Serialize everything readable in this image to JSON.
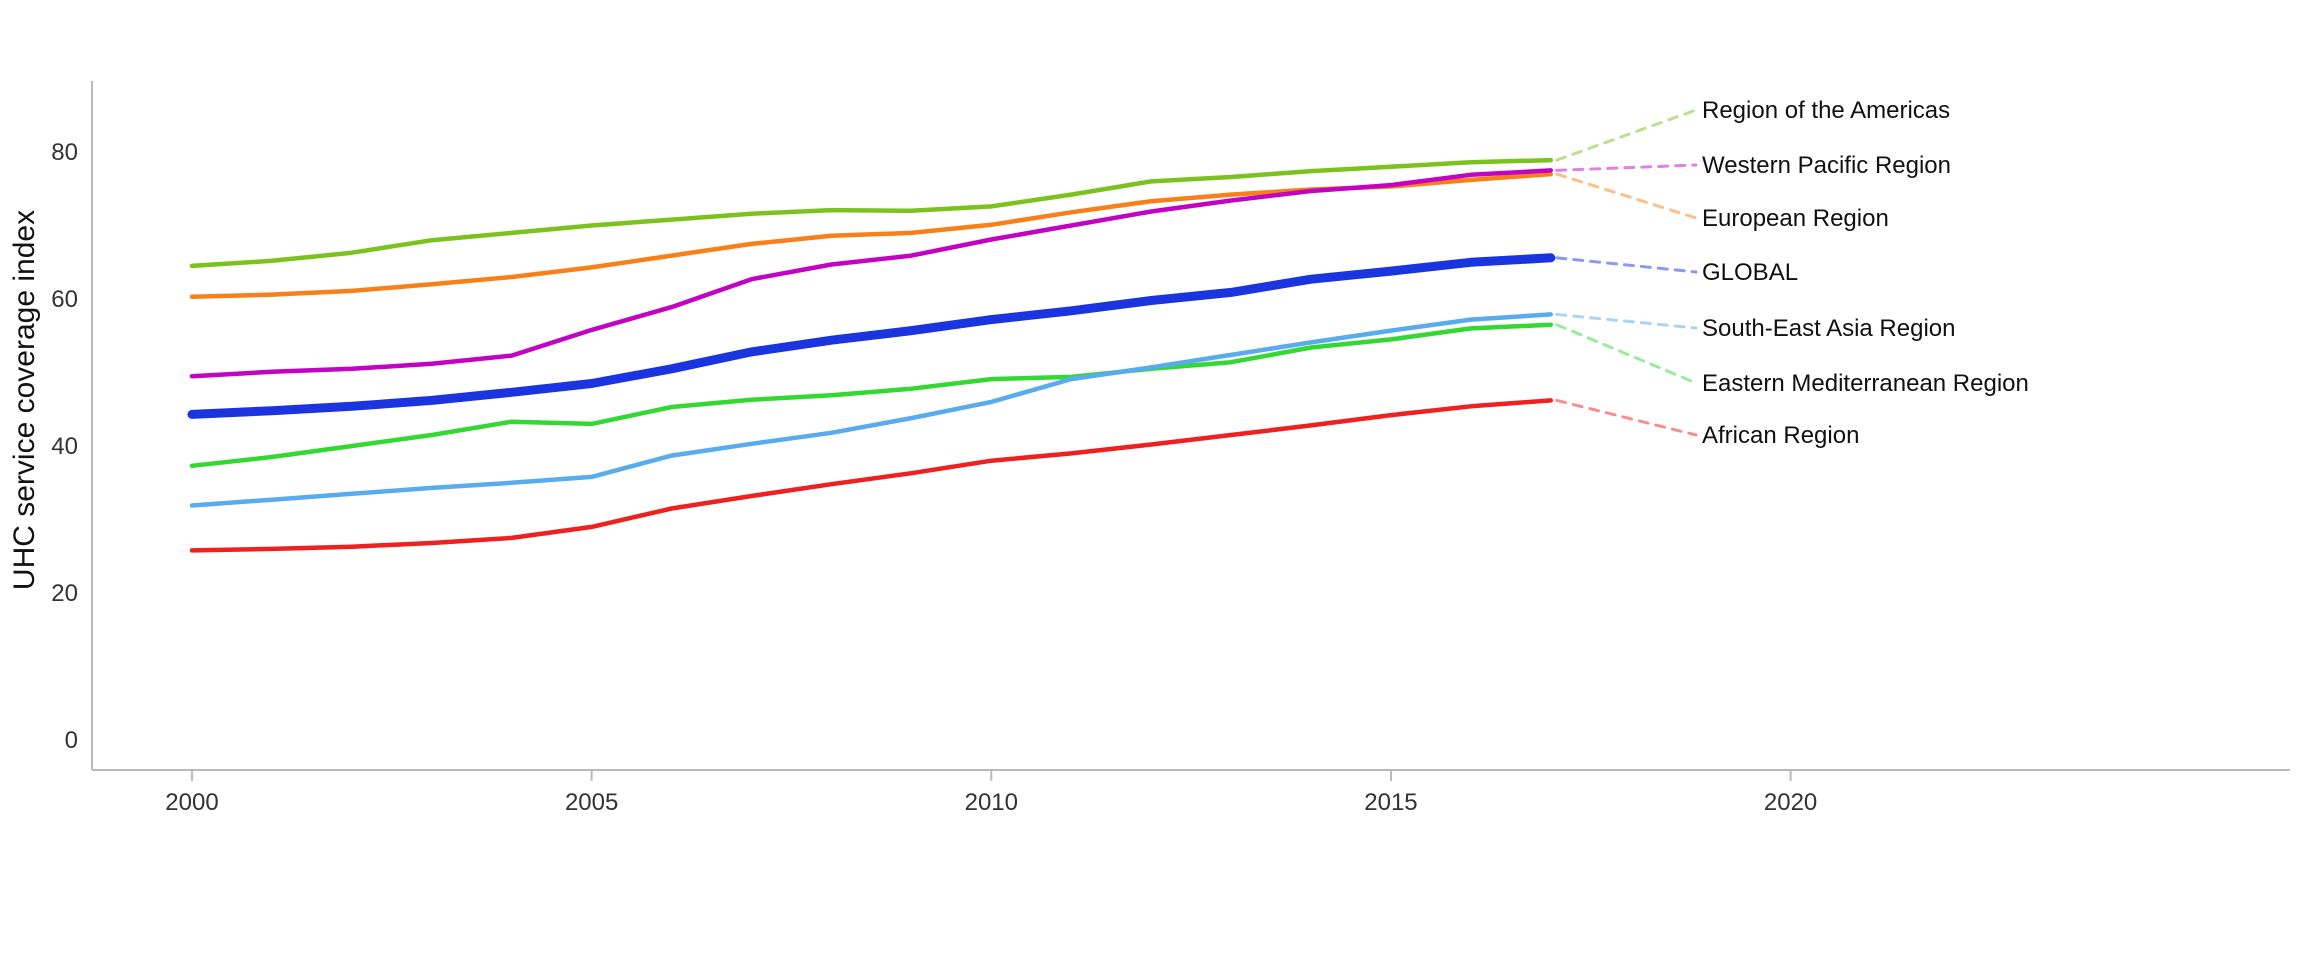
{
  "chart_data": {
    "type": "line",
    "title": "",
    "xlabel": "",
    "ylabel": "UHC service coverage index",
    "grid": false,
    "legend_position": "right-annotations",
    "xlim": [
      1998.8,
      2026.2
    ],
    "ylim": [
      0,
      93
    ],
    "xticks": [
      2000,
      2005,
      2010,
      2015,
      2020
    ],
    "yticks": [
      0,
      20,
      40,
      60,
      80
    ],
    "x": [
      2000,
      2001,
      2002,
      2003,
      2004,
      2005,
      2006,
      2007,
      2008,
      2009,
      2010,
      2011,
      2012,
      2013,
      2014,
      2015,
      2016,
      2017
    ],
    "axis_color": "#b9b9b9",
    "series": [
      {
        "name": "Region of the Americas",
        "color": "#7cc21e",
        "emphasis": false,
        "values": [
          64.5,
          65.2,
          66.3,
          68.0,
          69.0,
          70.0,
          70.8,
          71.6,
          72.1,
          72.0,
          72.6,
          74.2,
          76.0,
          76.6,
          77.4,
          78.0,
          78.6,
          78.9
        ]
      },
      {
        "name": "Western Pacific Region",
        "color": "#c303c3",
        "emphasis": false,
        "values": [
          49.5,
          50.1,
          50.5,
          51.2,
          52.3,
          55.8,
          58.9,
          62.7,
          64.7,
          65.9,
          68.1,
          70.0,
          71.9,
          73.4,
          74.7,
          75.5,
          76.9,
          77.5
        ]
      },
      {
        "name": "European Region",
        "color": "#f98018",
        "emphasis": false,
        "values": [
          60.3,
          60.6,
          61.1,
          62.0,
          63.0,
          64.3,
          65.9,
          67.5,
          68.6,
          69.0,
          70.1,
          71.8,
          73.3,
          74.2,
          74.9,
          75.3,
          76.2,
          77.0
        ]
      },
      {
        "name": "GLOBAL",
        "color": "#1a35e0",
        "emphasis": true,
        "values": [
          44.3,
          44.8,
          45.4,
          46.2,
          47.3,
          48.5,
          50.5,
          52.8,
          54.4,
          55.7,
          57.2,
          58.4,
          59.8,
          60.9,
          62.7,
          63.8,
          65.0,
          65.6
        ]
      },
      {
        "name": "South-East Asia Region",
        "color": "#58abec",
        "emphasis": false,
        "values": [
          31.9,
          32.7,
          33.5,
          34.3,
          35.0,
          35.8,
          38.7,
          40.3,
          41.8,
          43.8,
          46.0,
          49.1,
          50.7,
          52.4,
          54.1,
          55.7,
          57.2,
          57.9
        ]
      },
      {
        "name": "Eastern Mediterranean Region",
        "color": "#33d833",
        "emphasis": false,
        "values": [
          37.3,
          38.5,
          40.0,
          41.5,
          43.3,
          43.0,
          45.3,
          46.3,
          46.9,
          47.8,
          49.1,
          49.4,
          50.5,
          51.4,
          53.4,
          54.5,
          56.0,
          56.5
        ]
      },
      {
        "name": "African Region",
        "color": "#ee2020",
        "emphasis": false,
        "values": [
          25.8,
          26.0,
          26.3,
          26.8,
          27.5,
          29.0,
          31.5,
          33.2,
          34.8,
          36.3,
          38.0,
          39.0,
          40.2,
          41.5,
          42.8,
          44.2,
          45.4,
          46.2
        ]
      }
    ]
  }
}
